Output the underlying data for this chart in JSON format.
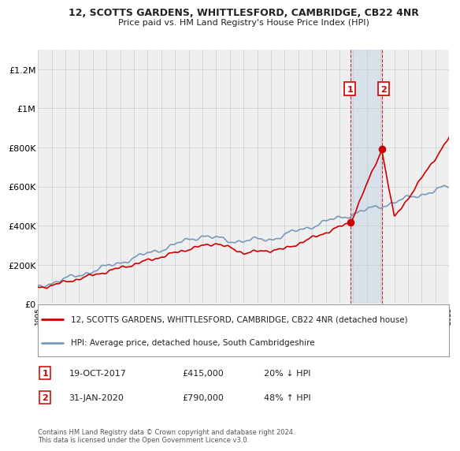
{
  "title1": "12, SCOTTS GARDENS, WHITTLESFORD, CAMBRIDGE, CB22 4NR",
  "title2": "Price paid vs. HM Land Registry's House Price Index (HPI)",
  "background_color": "#ffffff",
  "plot_bg_color": "#efefef",
  "legend_line1": "12, SCOTTS GARDENS, WHITTLESFORD, CAMBRIDGE, CB22 4NR (detached house)",
  "legend_line2": "HPI: Average price, detached house, South Cambridgeshire",
  "sale1_date": "19-OCT-2017",
  "sale1_price": "£415,000",
  "sale1_hpi": "20% ↓ HPI",
  "sale2_date": "31-JAN-2020",
  "sale2_price": "£790,000",
  "sale2_hpi": "48% ↑ HPI",
  "footer": "Contains HM Land Registry data © Crown copyright and database right 2024.\nThis data is licensed under the Open Government Licence v3.0.",
  "sale_color": "#cc0000",
  "hpi_color": "#7799bb",
  "sale_marker_color": "#cc0000",
  "shade_color": "#c8d8e8",
  "ylim": [
    0,
    1300000
  ],
  "yticks": [
    0,
    200000,
    400000,
    600000,
    800000,
    1000000,
    1200000
  ],
  "ytick_labels": [
    "£0",
    "£200K",
    "£400K",
    "£600K",
    "£800K",
    "£1M",
    "£1.2M"
  ],
  "xstart": 1995,
  "xend": 2025,
  "sale1_year": 2017.8,
  "sale2_year": 2020.08,
  "sale1_value": 415000,
  "sale2_value": 790000,
  "hpi_at_sale1": 520000,
  "hpi_at_sale2": 535000
}
